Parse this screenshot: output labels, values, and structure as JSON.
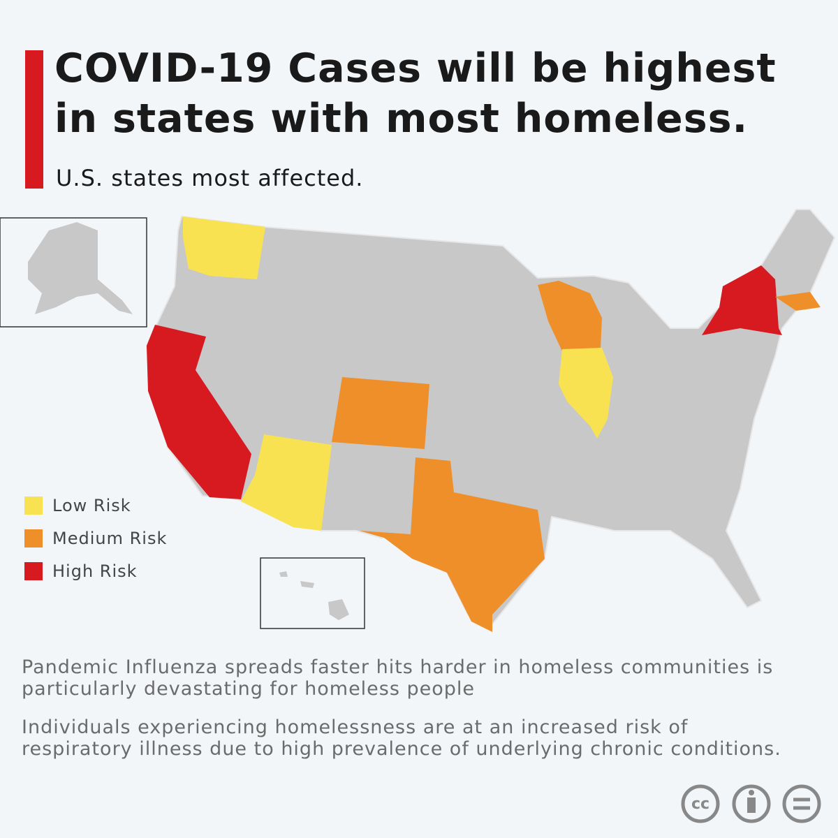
{
  "header": {
    "title": "COVID-19 Cases will be highest in states with most homeless.",
    "subtitle": "U.S. states most affected."
  },
  "legend": [
    {
      "label": "Low Risk",
      "color": "#f9e251"
    },
    {
      "label": "Medium Risk",
      "color": "#ef8f2a"
    },
    {
      "label": "High Risk",
      "color": "#d71920"
    }
  ],
  "paragraphs": [
    "Pandemic Influenza spreads faster hits harder in homeless communities is particularly devastating for homeless people",
    "Individuals experiencing homelessness are at an increased risk of respiratory illness due to high prevalence of underlying chronic conditions."
  ],
  "license": {
    "cc": "cc"
  }
}
